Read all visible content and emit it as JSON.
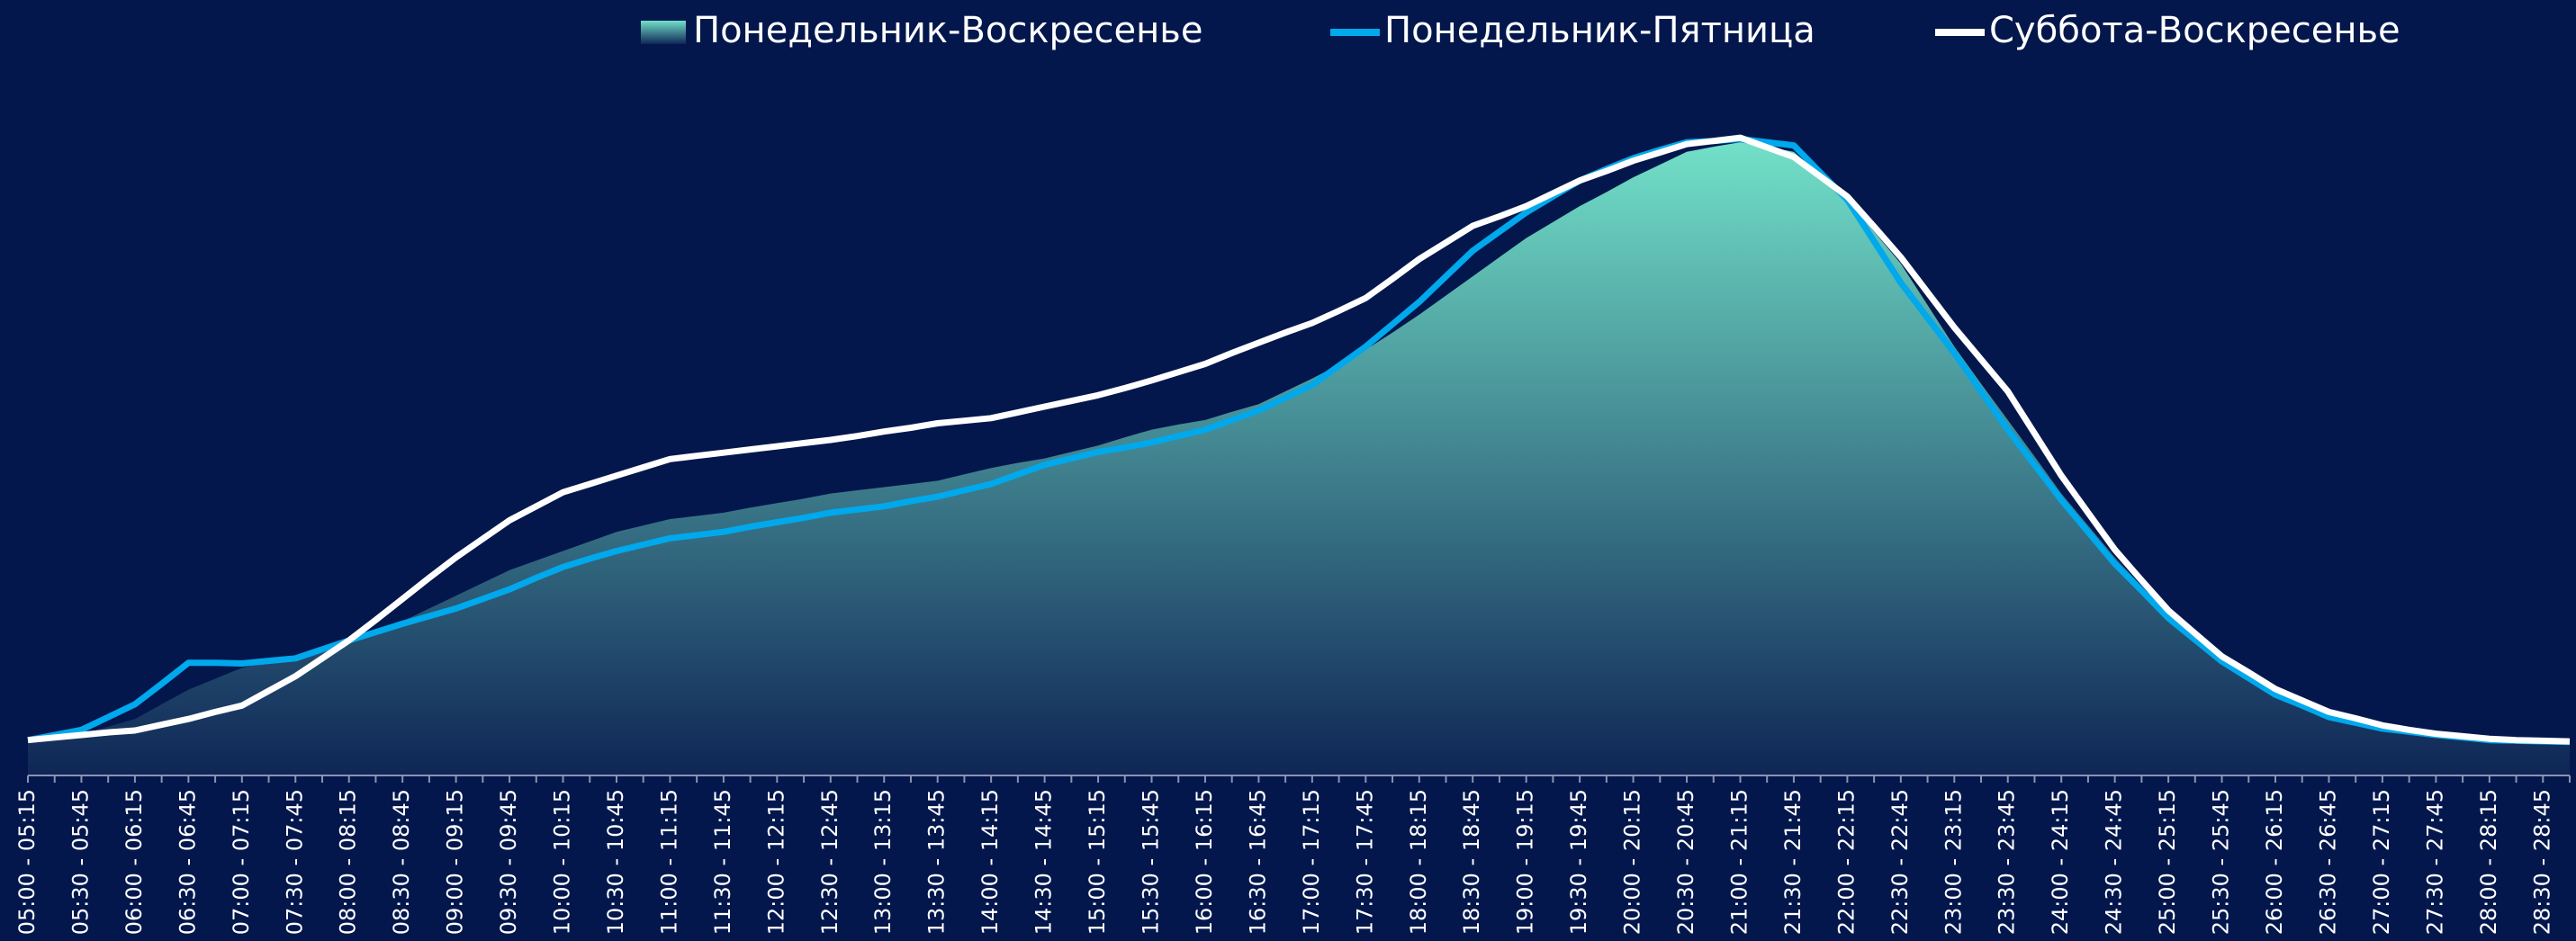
{
  "chart_data": {
    "type": "line",
    "categories": [
      "05:00 - 05:15",
      null,
      "05:30 - 05:45",
      null,
      "06:00 - 06:15",
      null,
      "06:30 - 06:45",
      null,
      "07:00 - 07:15",
      null,
      "07:30 - 07:45",
      null,
      "08:00 - 08:15",
      null,
      "08:30 - 08:45",
      null,
      "09:00 - 09:15",
      null,
      "09:30 - 09:45",
      null,
      "10:00 - 10:15",
      null,
      "10:30 - 10:45",
      null,
      "11:00 - 11:15",
      null,
      "11:30 - 11:45",
      null,
      "12:00 - 12:15",
      null,
      "12:30 - 12:45",
      null,
      "13:00 - 13:15",
      null,
      "13:30 - 13:45",
      null,
      "14:00 - 14:15",
      null,
      "14:30 - 14:45",
      null,
      "15:00 - 15:15",
      null,
      "15:30 - 15:45",
      null,
      "16:00 - 16:15",
      null,
      "16:30 - 16:45",
      null,
      "17:00 - 17:15",
      null,
      "17:30 - 17:45",
      null,
      "18:00 - 18:15",
      null,
      "18:30 - 18:45",
      null,
      "19:00 - 19:15",
      null,
      "19:30 - 19:45",
      null,
      "20:00 - 20:15",
      null,
      "20:30 - 20:45",
      null,
      "21:00 - 21:15",
      null,
      "21:30 - 21:45",
      null,
      "22:00 - 22:15",
      null,
      "22:30 - 22:45",
      null,
      "23:00 - 23:15",
      null,
      "23:30 - 23:45",
      null,
      "24:00 - 24:15",
      null,
      "24:30 - 24:45",
      null,
      "25:00 - 25:15",
      null,
      "25:30 - 25:45",
      null,
      "26:00 - 26:15",
      null,
      "26:30 - 26:45",
      null,
      "27:00 - 27:15",
      null,
      "27:30 - 27:45",
      null,
      "28:00 - 28:15",
      null,
      "28:30 - 28:45",
      null
    ],
    "ylim": [
      0,
      100
    ],
    "series": [
      {
        "name": "Понедельник-Воскресенье",
        "type": "area",
        "color": "#72e0c8",
        "gradient_end": "#0f2656",
        "values": [
          5.4,
          5.9,
          6.4,
          7.5,
          8.7,
          11,
          13.3,
          15,
          16.7,
          17.6,
          18.5,
          19.8,
          21,
          22.5,
          24,
          26,
          28,
          30,
          32,
          33.5,
          35,
          36.5,
          38,
          39,
          40,
          40.5,
          41,
          41.8,
          42.5,
          43.2,
          44,
          44.5,
          45,
          45.5,
          46,
          47,
          48,
          48.8,
          49.5,
          50.5,
          51.5,
          52.8,
          54,
          54.8,
          55.5,
          56.8,
          58,
          60,
          62,
          64.2,
          66.5,
          69.2,
          72,
          75,
          78,
          81,
          84,
          86.5,
          89,
          91.2,
          93.5,
          95.5,
          97.5,
          98.3,
          99,
          98.3,
          97.5,
          93.8,
          90,
          85,
          80,
          73.5,
          67,
          61.2,
          55.5,
          49.8,
          44,
          39,
          34,
          29.5,
          25,
          21.8,
          18.5,
          15.9,
          13.3,
          11.5,
          9.7,
          8.7,
          7.7,
          7,
          6.4,
          6,
          5.6,
          5.5,
          5.4,
          5.3
        ]
      },
      {
        "name": "Понедельник-Пятница",
        "type": "line",
        "color": "#00a8ec",
        "values": [
          5.4,
          6.2,
          7,
          9,
          11,
          14.2,
          17.5,
          17.5,
          17.4,
          17.8,
          18.2,
          19.6,
          21,
          22.3,
          23.6,
          24.8,
          26,
          27.5,
          29,
          30.8,
          32.5,
          33.8,
          35,
          36,
          37,
          37.5,
          38,
          38.8,
          39.5,
          40.2,
          41,
          41.5,
          42,
          42.8,
          43.5,
          44.5,
          45.5,
          47,
          48.5,
          49.5,
          50.5,
          51.2,
          52,
          53,
          54,
          55.5,
          57,
          59,
          61,
          64,
          67,
          70.5,
          74,
          78,
          82,
          85,
          88,
          90.5,
          93,
          94.8,
          96.5,
          97.8,
          99,
          99.2,
          99.5,
          99,
          98.5,
          94.2,
          90,
          83.5,
          77,
          71.5,
          66,
          60,
          54,
          48.5,
          43,
          38,
          33,
          28.8,
          24.5,
          21.1,
          17.7,
          15.1,
          12.5,
          10.8,
          9,
          8.1,
          7.2,
          6.7,
          6.2,
          5.8,
          5.4,
          5.3,
          5.2,
          5.1
        ]
      },
      {
        "name": "Суббота-Воскресенье",
        "type": "line",
        "color": "#ffffff",
        "values": [
          5.4,
          5.8,
          6.2,
          6.6,
          6.9,
          7.8,
          8.7,
          9.8,
          10.8,
          13.1,
          15.4,
          18.2,
          21,
          24.2,
          27.5,
          30.8,
          34,
          36.9,
          39.8,
          42,
          44.2,
          45.5,
          46.8,
          48.1,
          49.4,
          49.9,
          50.4,
          50.9,
          51.4,
          51.9,
          52.4,
          53,
          53.7,
          54.3,
          55,
          55.4,
          55.8,
          56.7,
          57.6,
          58.5,
          59.4,
          60.5,
          61.7,
          63,
          64.3,
          66,
          67.6,
          69.2,
          70.7,
          72.6,
          74.6,
          77.6,
          80.7,
          83.3,
          85.9,
          87.4,
          89,
          91,
          93,
          94.5,
          96.1,
          97.4,
          98.7,
          99.2,
          99.7,
          98.2,
          96.7,
          93.6,
          90.5,
          85.8,
          81,
          75.5,
          70,
          65,
          60,
          53.4,
          46.8,
          41,
          35.2,
          30.4,
          25.7,
          22.1,
          18.5,
          16,
          13.4,
          11.6,
          9.8,
          8.8,
          7.7,
          7,
          6.4,
          6,
          5.6,
          5.4,
          5.3,
          5.2
        ]
      }
    ],
    "background": "#03174d",
    "axis_color": "#8a93b0"
  }
}
